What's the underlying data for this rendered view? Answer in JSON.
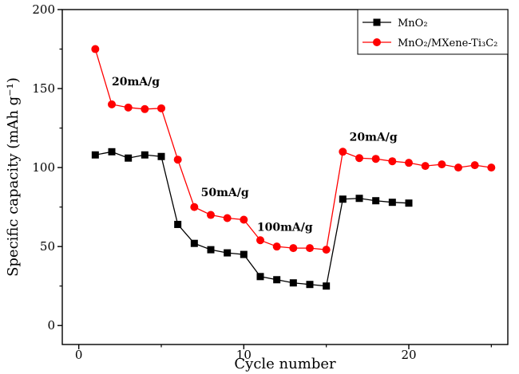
{
  "chart_data": {
    "type": "line",
    "title": "",
    "xlabel": "Cycle number",
    "ylabel": "Specific capacity (mAh g⁻¹)",
    "xlim": [
      -1,
      26
    ],
    "ylim": [
      -12,
      200
    ],
    "xticks": [
      0,
      10,
      20
    ],
    "yticks": [
      0,
      50,
      100,
      150,
      200
    ],
    "grid": false,
    "legend_position": "top-right",
    "series": [
      {
        "name": "MnO₂",
        "color": "#000000",
        "marker": "square",
        "x": [
          1,
          2,
          3,
          4,
          5,
          6,
          7,
          8,
          9,
          10,
          11,
          12,
          13,
          14,
          15,
          16,
          17,
          18,
          19,
          20
        ],
        "y": [
          108,
          110,
          106,
          108,
          107,
          64,
          52,
          48,
          46,
          45,
          31,
          29,
          27,
          26,
          25,
          80,
          80.5,
          79,
          78,
          77.5
        ]
      },
      {
        "name": "MnO₂/MXene-Ti₃C₂",
        "color": "#ff0000",
        "marker": "circle",
        "x": [
          1,
          2,
          3,
          4,
          5,
          6,
          7,
          8,
          9,
          10,
          11,
          12,
          13,
          14,
          15,
          16,
          17,
          18,
          19,
          20,
          21,
          22,
          23,
          24,
          25
        ],
        "y": [
          175,
          140,
          138,
          137,
          137.5,
          105,
          75,
          70,
          68,
          67,
          54,
          50,
          49,
          49,
          48,
          110,
          106,
          105.5,
          104,
          103,
          101,
          102,
          100,
          101.5,
          100
        ]
      }
    ],
    "annotations": [
      {
        "text": "20mA/g",
        "x": 2,
        "y": 152
      },
      {
        "text": "50mA/g",
        "x": 7.4,
        "y": 82
      },
      {
        "text": "100mA/g",
        "x": 10.8,
        "y": 60
      },
      {
        "text": "20mA/g",
        "x": 16.4,
        "y": 117
      }
    ]
  }
}
